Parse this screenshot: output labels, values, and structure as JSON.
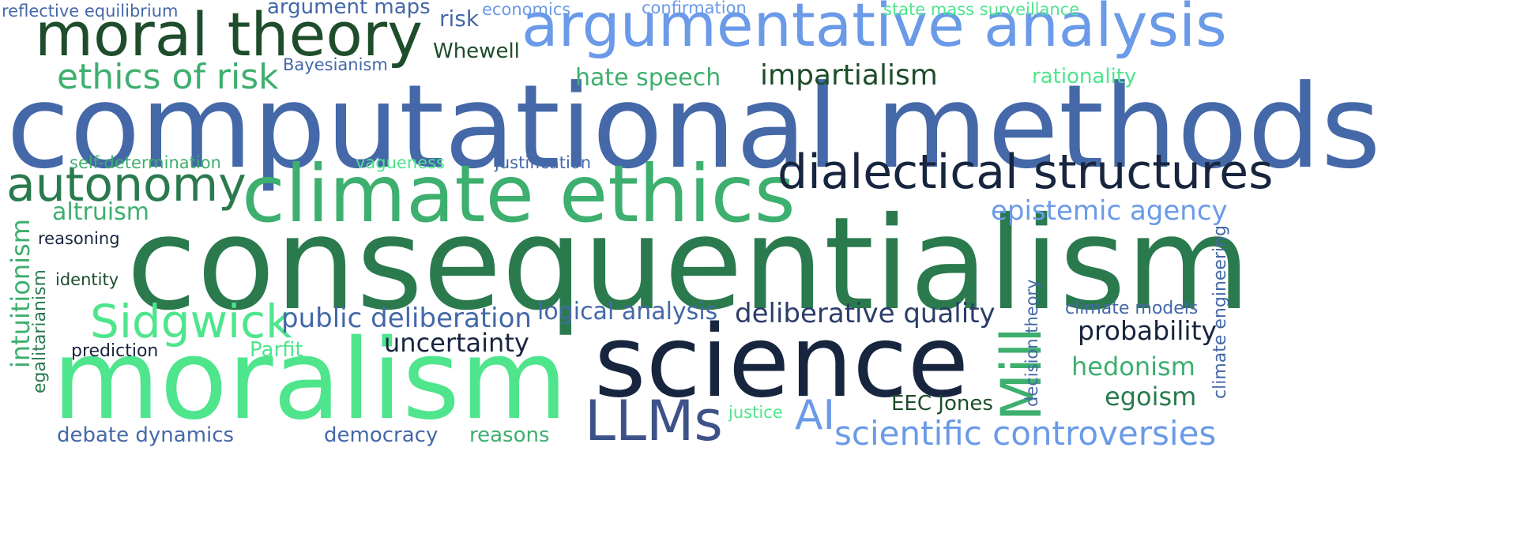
{
  "palette": {
    "green_dark": "#1e4d2b",
    "green_mid": "#2a7a4e",
    "green_light": "#3daf6e",
    "green_bright": "#4ee58c",
    "blue_mid": "#4468a8",
    "blue_light": "#6a9ae8",
    "navy": "#18253f"
  },
  "words": [
    {
      "text": "computational methods"
    },
    {
      "text": "consequentialism"
    },
    {
      "text": "moralism"
    },
    {
      "text": "science"
    },
    {
      "text": "climate ethics"
    },
    {
      "text": "argumentative analysis"
    },
    {
      "text": "moral theory"
    },
    {
      "text": "dialectical structures"
    },
    {
      "text": "autonomy"
    },
    {
      "text": "Sidgwick"
    },
    {
      "text": "Mill"
    },
    {
      "text": "LLMs"
    },
    {
      "text": "scientific controversies"
    },
    {
      "text": "ethics of risk"
    },
    {
      "text": "AI"
    },
    {
      "text": "epistemic agency"
    },
    {
      "text": "public deliberation"
    },
    {
      "text": "deliberative quality"
    },
    {
      "text": "impartialism"
    },
    {
      "text": "logical analysis"
    },
    {
      "text": "uncertainty"
    },
    {
      "text": "probability"
    },
    {
      "text": "hedonism"
    },
    {
      "text": "egoism"
    },
    {
      "text": "hate speech"
    },
    {
      "text": "altruism"
    },
    {
      "text": "intuitionism"
    },
    {
      "text": "EEC Jones"
    },
    {
      "text": "democracy"
    },
    {
      "text": "debate dynamics"
    },
    {
      "text": "reasons"
    },
    {
      "text": "rationality"
    },
    {
      "text": "Whewell"
    },
    {
      "text": "risk"
    },
    {
      "text": "argument maps"
    },
    {
      "text": "Parfit"
    },
    {
      "text": "egalitarianism"
    },
    {
      "text": "climate engineering"
    },
    {
      "text": "decision theory"
    },
    {
      "text": "climate models"
    },
    {
      "text": "prediction"
    },
    {
      "text": "identity"
    },
    {
      "text": "reasoning"
    },
    {
      "text": "self-determination"
    },
    {
      "text": "justification"
    },
    {
      "text": "vagueness"
    },
    {
      "text": "justice"
    },
    {
      "text": "Bayesianism"
    },
    {
      "text": "reflective equilibrium"
    },
    {
      "text": "economics"
    },
    {
      "text": "confirmation"
    },
    {
      "text": "state mass surveillance"
    }
  ]
}
